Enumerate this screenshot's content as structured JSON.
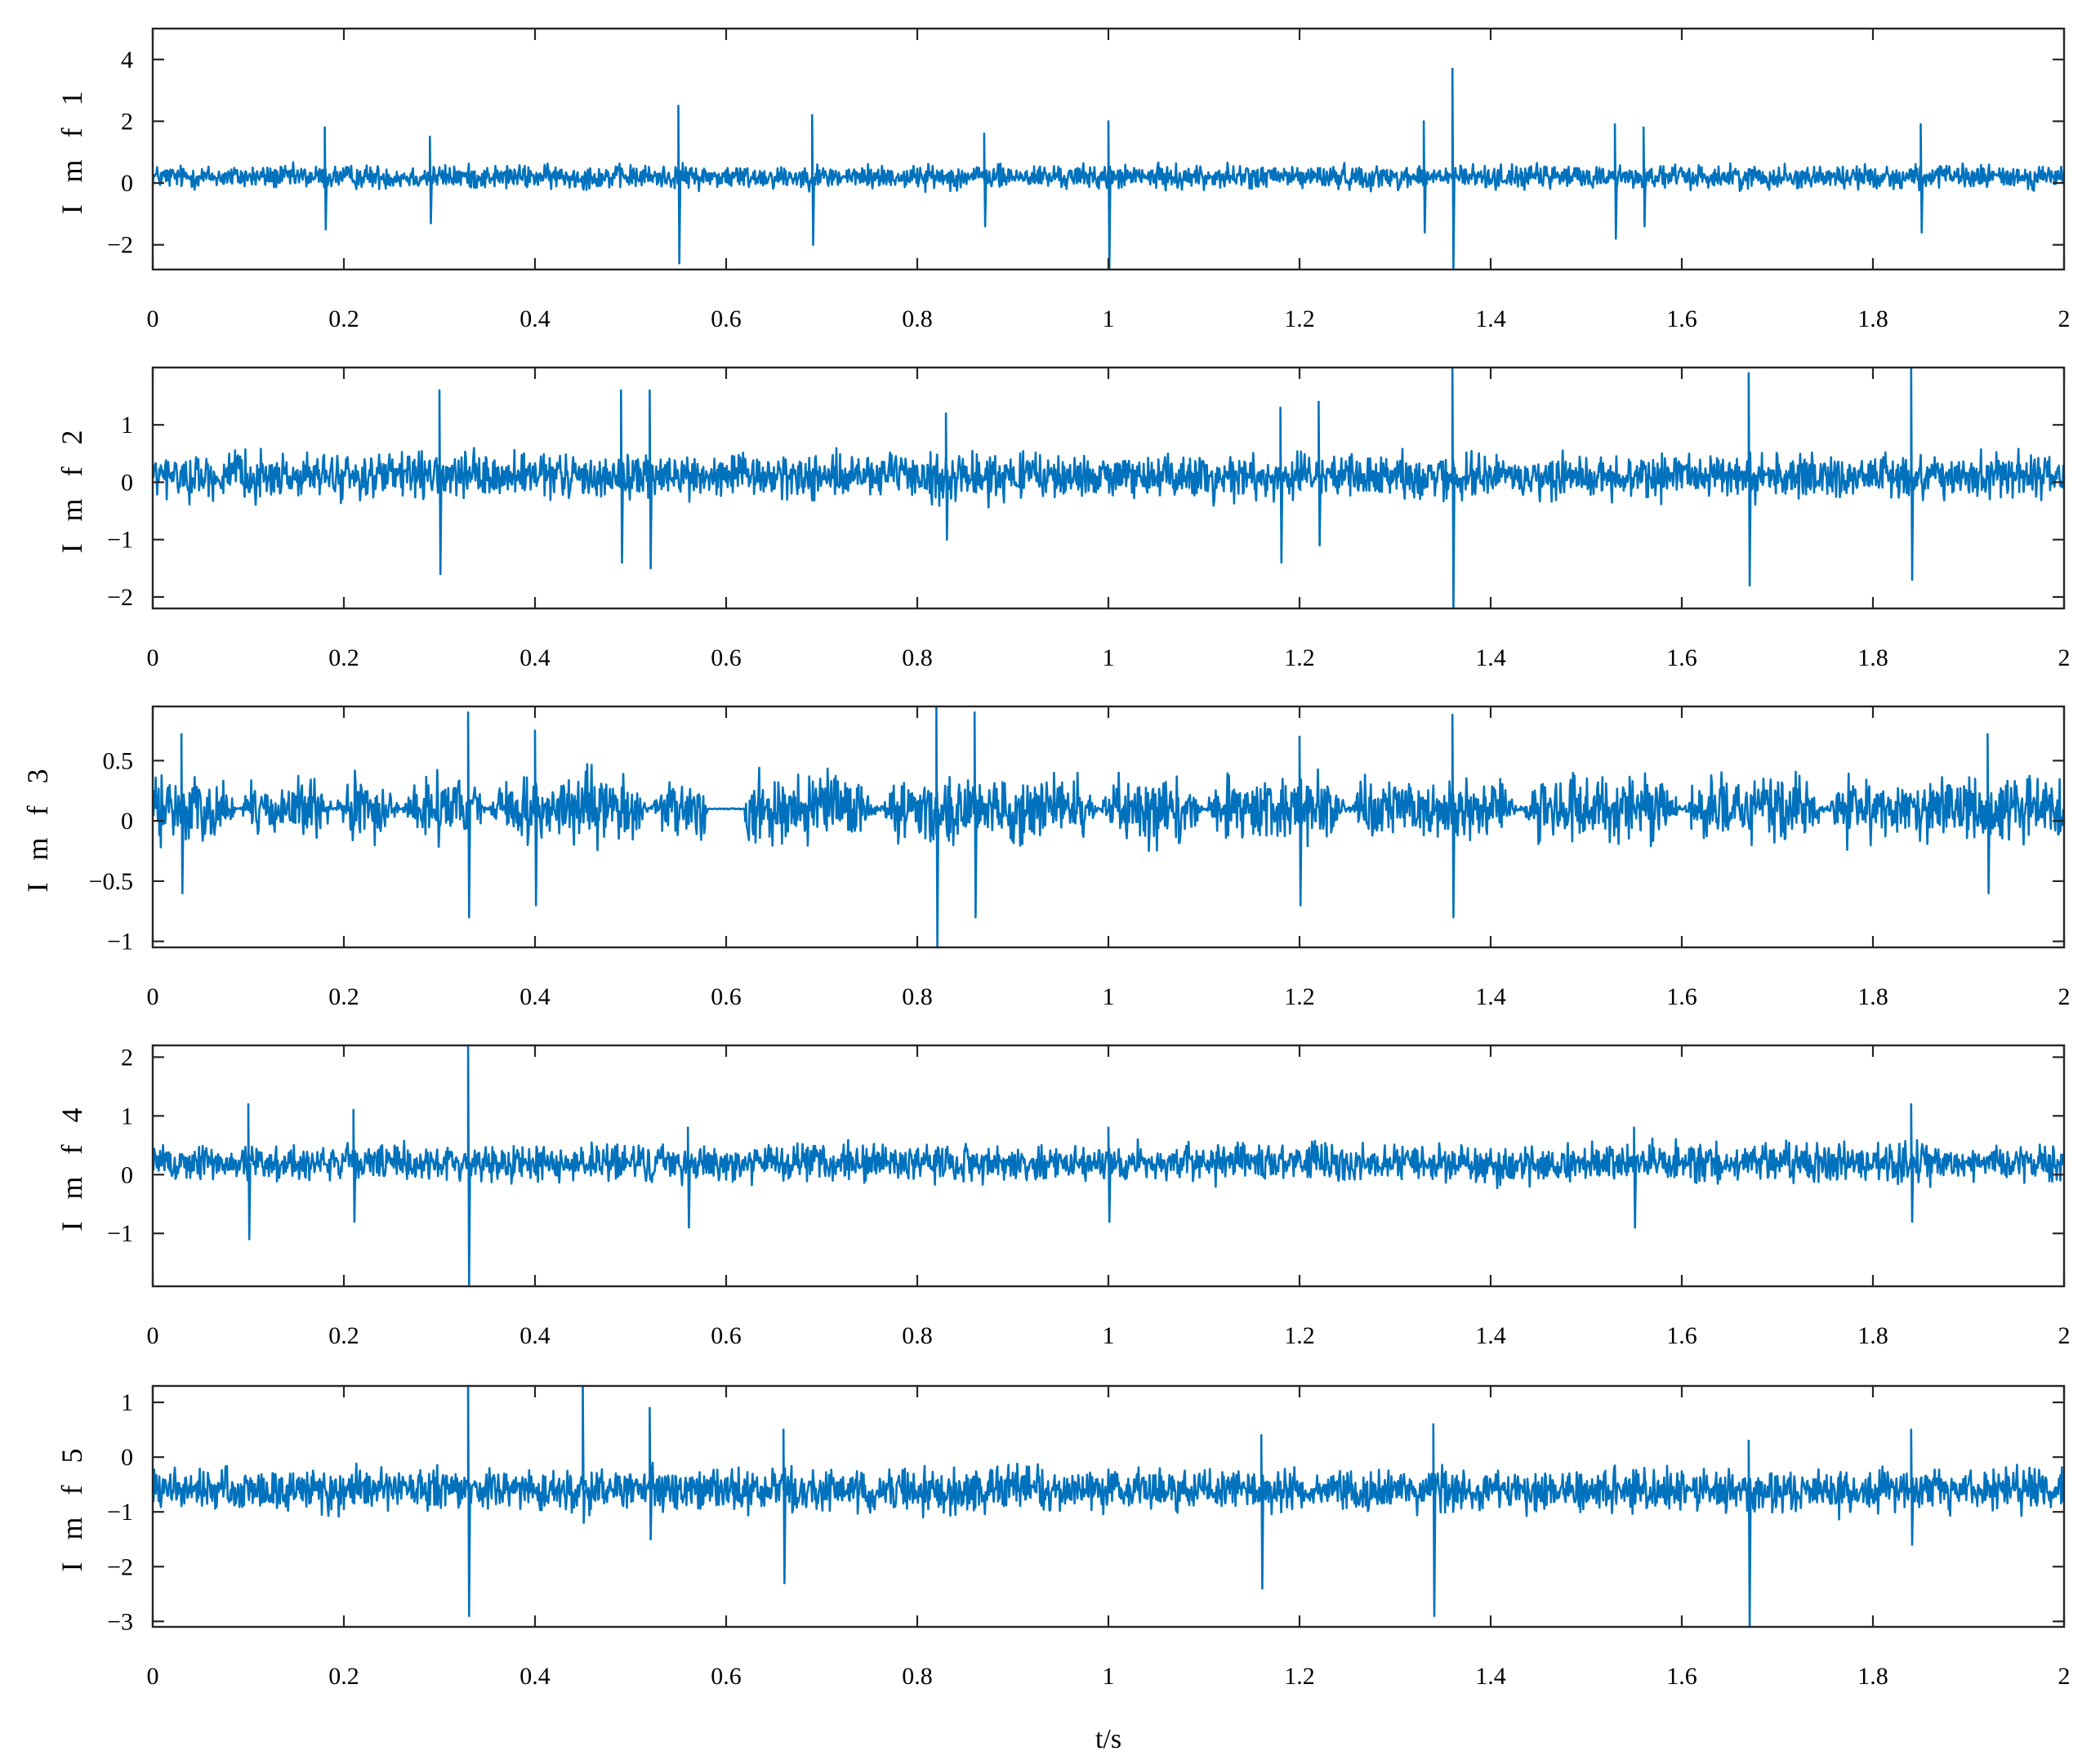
{
  "chart_data": [
    {
      "type": "line",
      "ylabel": "I m f 1",
      "xlim": [
        0,
        2
      ],
      "ylim": [
        -2.8,
        5.0
      ],
      "yticks": [
        -2,
        0,
        2,
        4
      ],
      "ytick_labels": [
        "−2",
        "0",
        "2",
        "4"
      ],
      "xticks": [
        0,
        0.2,
        0.4,
        0.6,
        0.8,
        1,
        1.2,
        1.4,
        1.6,
        1.8,
        2
      ],
      "xtick_labels": [
        "0",
        "0.2",
        "0.4",
        "0.6",
        "0.8",
        "1",
        "1.2",
        "1.4",
        "1.6",
        "1.8",
        "2"
      ],
      "grid": false,
      "series": [
        {
          "color": "#0072BD",
          "baseline": 0.2,
          "noise_amplitude": 0.55,
          "spikes": [
            [
              0.18,
              1.8,
              -1.5
            ],
            [
              0.29,
              1.5,
              -1.3
            ],
            [
              0.55,
              2.5,
              -2.6
            ],
            [
              0.69,
              2.2,
              -2.0
            ],
            [
              0.87,
              1.6,
              -1.4
            ],
            [
              1.0,
              2.0,
              -2.8
            ],
            [
              1.33,
              2.0,
              -1.6
            ],
            [
              1.36,
              3.7,
              -2.8
            ],
            [
              1.53,
              1.9,
              -1.8
            ],
            [
              1.56,
              1.8,
              -1.4
            ],
            [
              1.85,
              1.9,
              -1.6
            ]
          ]
        }
      ]
    },
    {
      "type": "line",
      "ylabel": "I m f 2",
      "xlim": [
        0,
        2
      ],
      "ylim": [
        -2.2,
        2.0
      ],
      "yticks": [
        -2,
        -1,
        0,
        1
      ],
      "ytick_labels": [
        "−2",
        "−1",
        "0",
        "1"
      ],
      "xticks": [
        0,
        0.2,
        0.4,
        0.6,
        0.8,
        1,
        1.2,
        1.4,
        1.6,
        1.8,
        2
      ],
      "xtick_labels": [
        "0",
        "0.2",
        "0.4",
        "0.6",
        "0.8",
        "1",
        "1.2",
        "1.4",
        "1.6",
        "1.8",
        "2"
      ],
      "grid": false,
      "series": [
        {
          "color": "#0072BD",
          "baseline": 0.1,
          "noise_amplitude": 0.55,
          "spikes": [
            [
              0.3,
              1.6,
              -1.6
            ],
            [
              0.49,
              1.6,
              -1.4
            ],
            [
              0.52,
              1.6,
              -1.5
            ],
            [
              0.83,
              1.2,
              -1.0
            ],
            [
              1.18,
              1.3,
              -1.4
            ],
            [
              1.22,
              1.4,
              -1.1
            ],
            [
              1.36,
              2.0,
              -2.2
            ],
            [
              1.67,
              1.9,
              -1.8
            ],
            [
              1.84,
              2.0,
              -1.7
            ]
          ]
        }
      ]
    },
    {
      "type": "line",
      "ylabel": "I m f 3",
      "xlim": [
        0,
        2
      ],
      "ylim": [
        -1.05,
        0.95
      ],
      "yticks": [
        -1,
        -0.5,
        0,
        0.5
      ],
      "ytick_labels": [
        "−1",
        "−0.5",
        "0",
        "0.5"
      ],
      "xticks": [
        0,
        0.2,
        0.4,
        0.6,
        0.8,
        1,
        1.2,
        1.4,
        1.6,
        1.8,
        2
      ],
      "xtick_labels": [
        "0",
        "0.2",
        "0.4",
        "0.6",
        "0.8",
        "1",
        "1.2",
        "1.4",
        "1.6",
        "1.8",
        "2"
      ],
      "grid": false,
      "series": [
        {
          "color": "#0072BD",
          "baseline": 0.1,
          "noise_amplitude": 0.38,
          "quiet_points": [
            0.09,
            0.19,
            0.26,
            0.35,
            0.52,
            0.6,
            0.76,
            0.99,
            1.1,
            1.25,
            1.43,
            1.6,
            1.75
          ],
          "quiet_gaps": [
            [
              0.58,
              0.62
            ]
          ],
          "spikes": [
            [
              0.03,
              0.72,
              -0.6
            ],
            [
              0.33,
              0.9,
              -0.8
            ],
            [
              0.4,
              0.75,
              -0.7
            ],
            [
              0.82,
              0.95,
              -1.05
            ],
            [
              0.86,
              0.9,
              -0.8
            ],
            [
              1.2,
              0.7,
              -0.7
            ],
            [
              1.36,
              0.88,
              -0.8
            ],
            [
              1.92,
              0.72,
              -0.6
            ]
          ]
        }
      ]
    },
    {
      "type": "line",
      "ylabel": "I m f 4",
      "xlim": [
        0,
        2
      ],
      "ylim": [
        -1.9,
        2.2
      ],
      "yticks": [
        -1,
        0,
        1,
        2
      ],
      "ytick_labels": [
        "−1",
        "0",
        "1",
        "2"
      ],
      "xticks": [
        0,
        0.2,
        0.4,
        0.6,
        0.8,
        1,
        1.2,
        1.4,
        1.6,
        1.8,
        2
      ],
      "xtick_labels": [
        "0",
        "0.2",
        "0.4",
        "0.6",
        "0.8",
        "1",
        "1.2",
        "1.4",
        "1.6",
        "1.8",
        "2"
      ],
      "grid": false,
      "series": [
        {
          "color": "#0072BD",
          "baseline": 0.2,
          "noise_amplitude": 0.45,
          "spikes": [
            [
              0.1,
              1.2,
              -1.1
            ],
            [
              0.21,
              1.1,
              -0.8
            ],
            [
              0.33,
              2.2,
              -1.9
            ],
            [
              0.56,
              0.8,
              -0.9
            ],
            [
              1.0,
              0.8,
              -0.8
            ],
            [
              1.55,
              0.8,
              -0.9
            ],
            [
              1.84,
              1.2,
              -0.8
            ]
          ]
        }
      ]
    },
    {
      "type": "line",
      "ylabel": "I m f 5",
      "xlim": [
        0,
        2
      ],
      "ylim": [
        -3.1,
        1.3
      ],
      "yticks": [
        -3,
        -2,
        -1,
        0,
        1
      ],
      "ytick_labels": [
        "−3",
        "−2",
        "−1",
        "0",
        "1"
      ],
      "xticks": [
        0,
        0.2,
        0.4,
        0.6,
        0.8,
        1,
        1.2,
        1.4,
        1.6,
        1.8,
        2
      ],
      "xtick_labels": [
        "0",
        "0.2",
        "0.4",
        "0.6",
        "0.8",
        "1",
        "1.2",
        "1.4",
        "1.6",
        "1.8",
        "2"
      ],
      "xlabel": "t/s",
      "grid": false,
      "series": [
        {
          "color": "#0072BD",
          "baseline": -0.6,
          "noise_amplitude": 0.55,
          "spikes": [
            [
              0.33,
              1.3,
              -2.9
            ],
            [
              0.45,
              1.3,
              -1.2
            ],
            [
              0.52,
              0.9,
              -1.5
            ],
            [
              0.66,
              0.5,
              -2.3
            ],
            [
              1.16,
              0.4,
              -2.4
            ],
            [
              1.34,
              0.6,
              -2.9
            ],
            [
              1.67,
              0.3,
              -3.1
            ],
            [
              1.84,
              0.5,
              -1.6
            ]
          ]
        }
      ]
    }
  ]
}
